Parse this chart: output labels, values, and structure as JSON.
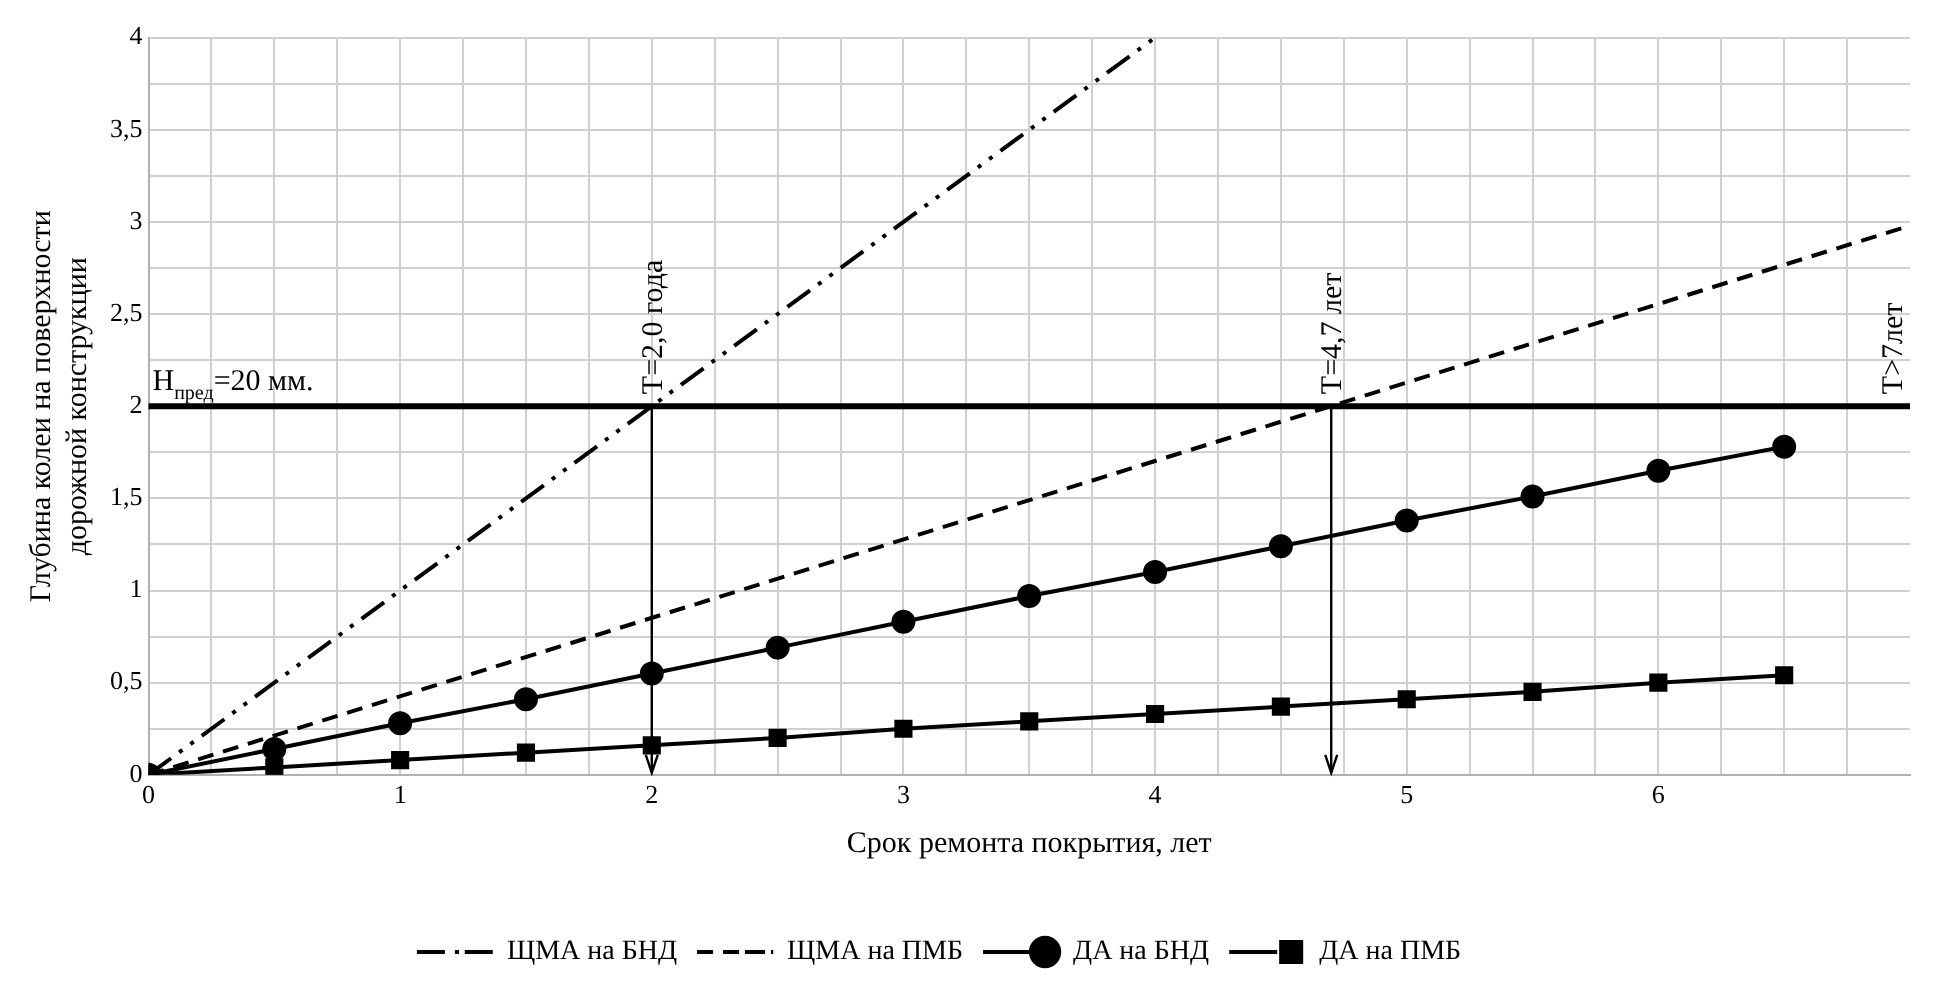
{
  "chart_data": {
    "type": "line",
    "xlabel": "Срок ремонта покрытия, лет",
    "ylabel": "Глубина колеи на поверхности\nдорожной конструкции",
    "xlim": [
      0,
      7
    ],
    "ylim": [
      0,
      4
    ],
    "xticks": [
      0,
      {
        "value": 0.25,
        "label": null
      },
      {
        "value": 0.5,
        "label": null
      },
      {
        "value": 0.75,
        "label": null
      },
      1,
      {
        "value": 1.25,
        "label": null
      },
      {
        "value": 1.5,
        "label": null
      },
      {
        "value": 1.75,
        "label": null
      },
      2,
      {
        "value": 2.25,
        "label": null
      },
      {
        "value": 2.5,
        "label": null
      },
      {
        "value": 2.75,
        "label": null
      },
      3,
      {
        "value": 3.25,
        "label": null
      },
      {
        "value": 3.5,
        "label": null
      },
      {
        "value": 3.75,
        "label": null
      },
      4,
      {
        "value": 4.25,
        "label": null
      },
      {
        "value": 4.5,
        "label": null
      },
      {
        "value": 4.75,
        "label": null
      },
      5,
      {
        "value": 5.25,
        "label": null
      },
      {
        "value": 5.5,
        "label": null
      },
      {
        "value": 5.75,
        "label": null
      },
      6,
      {
        "value": 6.25,
        "label": null
      },
      {
        "value": 6.5,
        "label": null
      },
      {
        "value": 6.75,
        "label": null
      }
    ],
    "yticks": [
      0,
      {
        "value": 0.25,
        "label": null
      },
      {
        "value": 0.5,
        "label": "0,5"
      },
      {
        "value": 0.75,
        "label": null
      },
      1,
      {
        "value": 1.25,
        "label": null
      },
      {
        "value": 1.5,
        "label": "1,5"
      },
      {
        "value": 1.75,
        "label": null
      },
      2,
      {
        "value": 2.25,
        "label": null
      },
      {
        "value": 2.5,
        "label": "2,5"
      },
      {
        "value": 2.75,
        "label": null
      },
      3,
      {
        "value": 3.25,
        "label": null
      },
      {
        "value": 3.5,
        "label": "3,5"
      },
      {
        "value": 3.75,
        "label": null
      },
      4
    ],
    "grid": true,
    "legend": "bottom",
    "series": [
      {
        "name": "ЩМА на БНД",
        "color": "#000000",
        "line_style": "dashdotdot",
        "x": [
          0,
          4
        ],
        "values": [
          0,
          4
        ]
      },
      {
        "name": "ЩМА на ПМБ",
        "color": "#000000",
        "line_style": "dashed",
        "x": [
          0,
          7
        ],
        "values": [
          0,
          2.98
        ]
      },
      {
        "name": "ДА на БНД",
        "color": "#000000",
        "line_style": "solid",
        "marker": "circle",
        "x": [
          0,
          0.5,
          1,
          1.5,
          2,
          2.5,
          3,
          3.5,
          4,
          4.5,
          5,
          5.5,
          6,
          6.5
        ],
        "values": [
          0,
          0.14,
          0.28,
          0.41,
          0.55,
          0.69,
          0.83,
          0.97,
          1.1,
          1.24,
          1.38,
          1.51,
          1.65,
          1.78
        ]
      },
      {
        "name": "ДА на ПМБ",
        "color": "#000000",
        "line_style": "solid",
        "marker": "square",
        "x": [
          0,
          0.5,
          1,
          1.5,
          2,
          2.5,
          3,
          3.5,
          4,
          4.5,
          5,
          5.5,
          6,
          6.5
        ],
        "values": [
          0,
          0.04,
          0.08,
          0.12,
          0.16,
          0.2,
          0.25,
          0.29,
          0.33,
          0.37,
          0.41,
          0.45,
          0.5,
          0.54
        ]
      }
    ],
    "ref_lines": [
      {
        "axis": "y",
        "value": 2,
        "color": "#000000",
        "line_style": "solid"
      }
    ],
    "annotations": [
      "H$_{пред}$=20 мм.",
      {
        "text": "Т=2,0 года",
        "x": 2,
        "y": 2
      },
      {
        "text": "Т=4,7 лет",
        "x": 4.7,
        "y": 2
      },
      {
        "text": "Т>7лет",
        "x": 7,
        "y": 2
      }
    ]
  }
}
